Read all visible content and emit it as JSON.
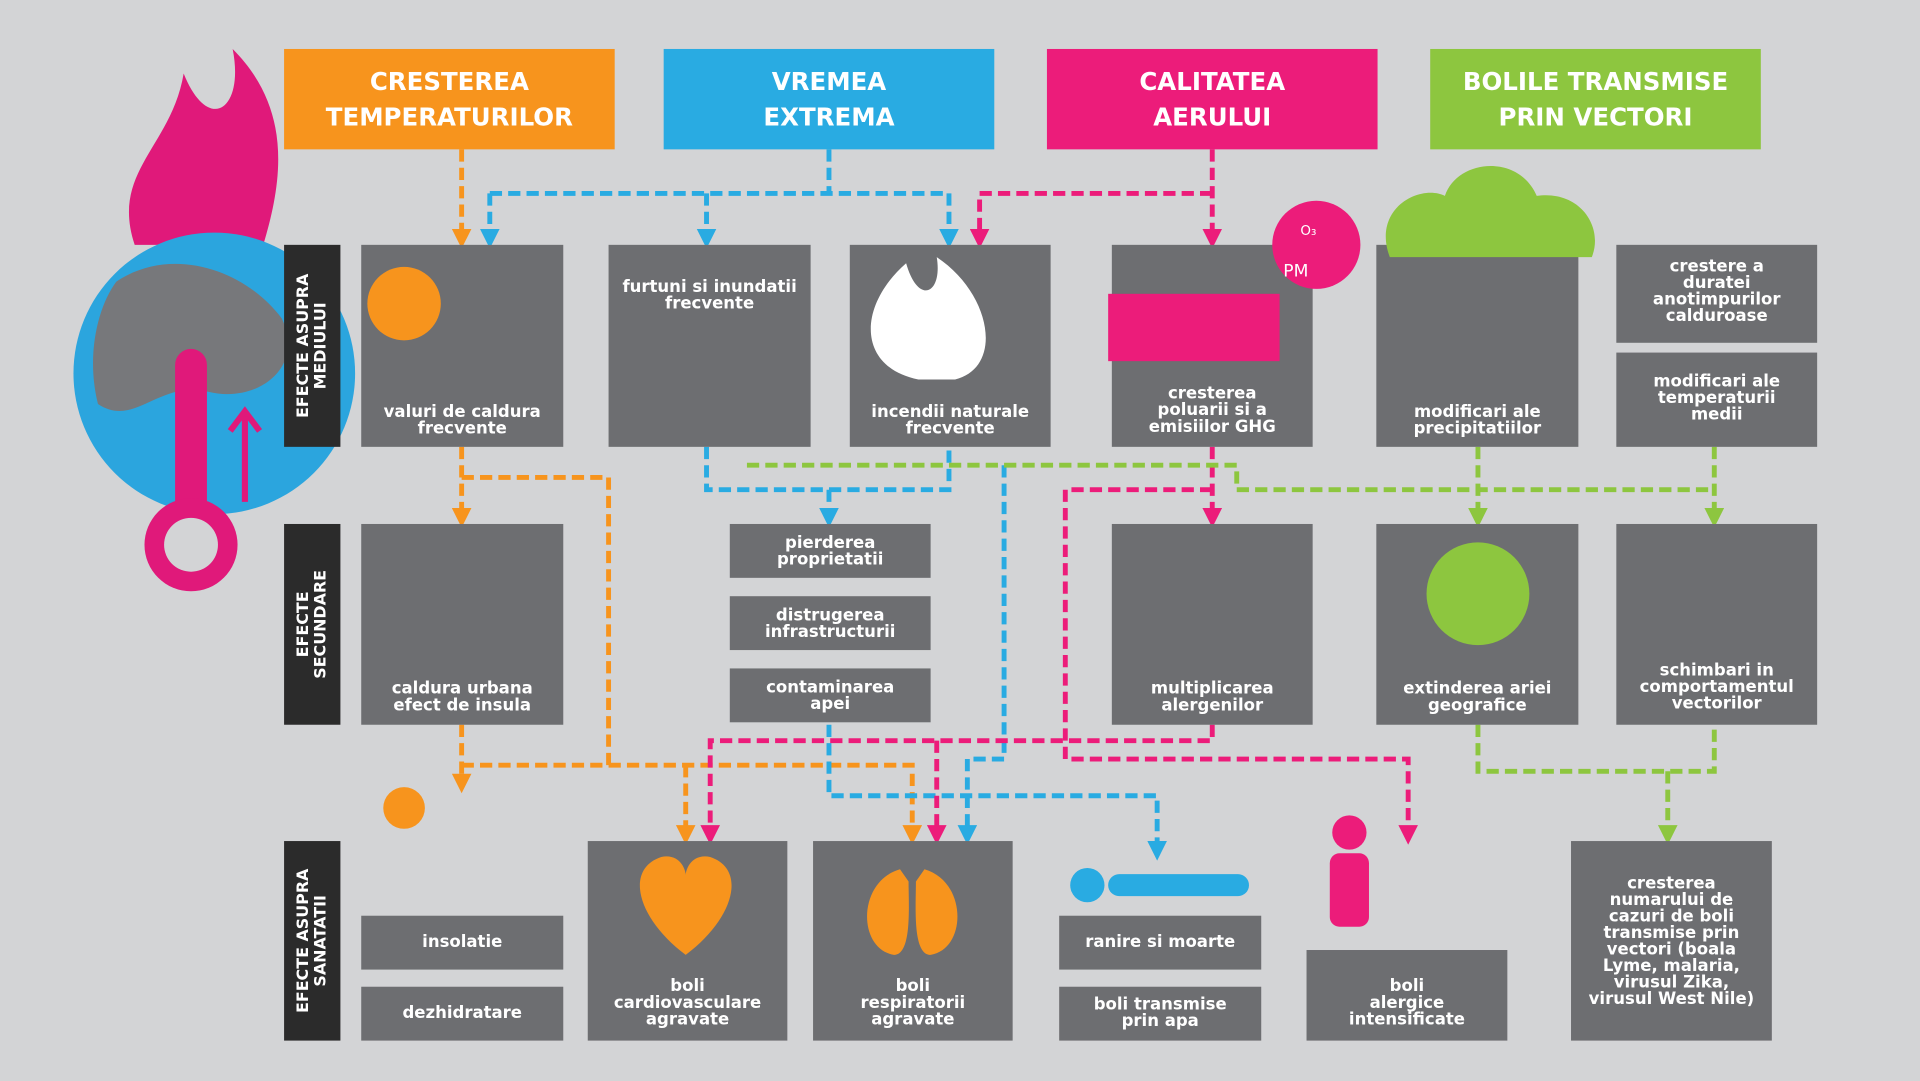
{
  "headers": [
    {
      "lines": [
        "CRESTEREA",
        "TEMPERATURILOR"
      ]
    },
    {
      "lines": [
        "VREMEA",
        "EXTREMA"
      ]
    },
    {
      "lines": [
        "CALITATEA",
        "AERULUI"
      ]
    },
    {
      "lines": [
        "BOLILE TRANSMISE",
        "PRIN VECTORI"
      ]
    }
  ],
  "row_labels": [
    {
      "lines": [
        "EFECTE ASUPRA",
        "MEDIULUI"
      ]
    },
    {
      "lines": [
        "EFECTE",
        "SECUNDARE"
      ]
    },
    {
      "lines": [
        "EFECTE ASUPRA",
        "SANATATII"
      ]
    }
  ],
  "boxes": [
    {
      "lines": [
        "valuri de caldura",
        "frecvente"
      ]
    },
    {
      "lines": [
        "furtuni si inundatii",
        "frecvente"
      ]
    },
    {
      "lines": [
        "incendii naturale",
        "frecvente"
      ]
    },
    {
      "lines": [
        "cresterea",
        "poluarii si a",
        "emisiilor GHG"
      ]
    },
    {
      "lines": [
        "modificari ale",
        "precipitatiilor"
      ]
    },
    {
      "lines": [
        "crestere a",
        "duratei",
        "anotimpurilor",
        "calduroase"
      ]
    },
    {
      "lines": [
        "modificari ale",
        "temperaturii",
        "medii"
      ]
    },
    {
      "lines": [
        "caldura urbana",
        "efect de insula"
      ]
    },
    {
      "lines": [
        "pierderea",
        "proprietatii"
      ]
    },
    {
      "lines": [
        "distrugerea",
        "infrastructurii"
      ]
    },
    {
      "lines": [
        "contaminarea",
        "apei"
      ]
    },
    {
      "lines": [
        "multiplicarea",
        "alergenilor"
      ]
    },
    {
      "lines": [
        "extinderea ariei",
        "geografice"
      ]
    },
    {
      "lines": [
        "schimbari in",
        "comportamentul",
        "vectorilor"
      ]
    },
    {
      "lines": [
        "insolatie"
      ]
    },
    {
      "lines": [
        "dezhidratare"
      ]
    },
    {
      "lines": [
        "boli",
        "cardiovasculare",
        "agravate"
      ]
    },
    {
      "lines": [
        "boli",
        "respiratorii",
        "agravate"
      ]
    },
    {
      "lines": [
        "ranire si moarte"
      ]
    },
    {
      "lines": [
        "boli transmise",
        "prin apa"
      ]
    },
    {
      "lines": [
        "boli",
        "alergice",
        "intensificate"
      ]
    },
    {
      "lines": [
        "cresterea",
        "numarului de",
        "cazuri de boli",
        "transmise prin",
        "vectori (boala",
        "Lyme, malaria,",
        "virusul Zika,",
        "virusul West Nile)"
      ]
    }
  ],
  "icon_labels": [
    "PM",
    "O₃"
  ]
}
